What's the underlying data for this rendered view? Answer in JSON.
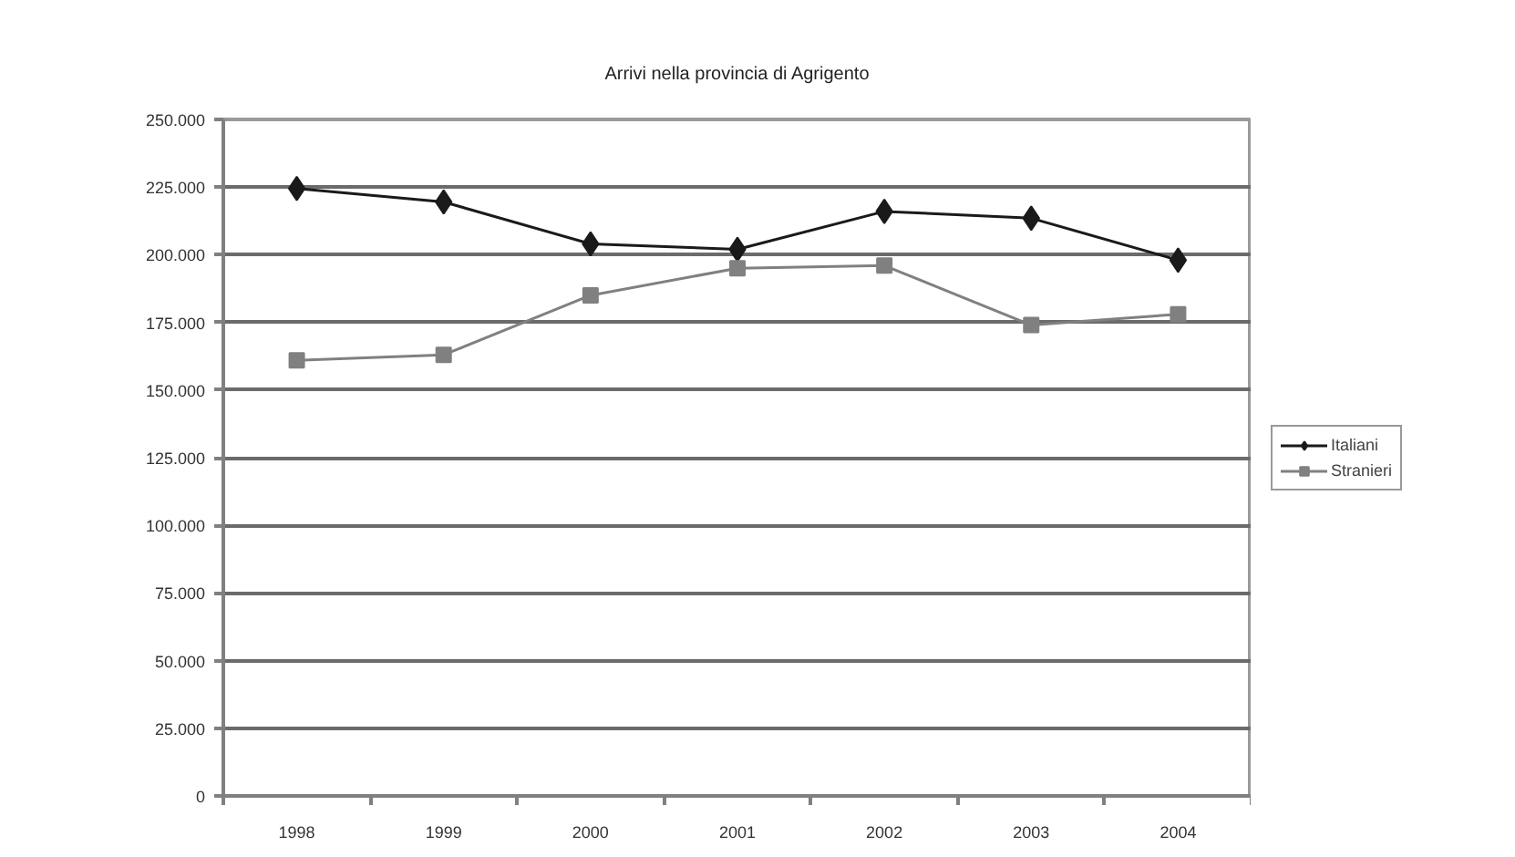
{
  "chart_data": {
    "type": "line",
    "title": "Arrivi nella provincia di Agrigento",
    "categories": [
      "1998",
      "1999",
      "2000",
      "2001",
      "2002",
      "2003",
      "2004"
    ],
    "series": [
      {
        "name": "Italiani",
        "color": "#1a1a1a",
        "marker": "diamond",
        "values": [
          224500,
          219500,
          204000,
          202000,
          216000,
          213500,
          198000
        ]
      },
      {
        "name": "Stranieri",
        "color": "#808080",
        "marker": "square",
        "values": [
          161000,
          163000,
          185000,
          195000,
          196000,
          174000,
          178000
        ]
      }
    ],
    "ylim": [
      0,
      250000
    ],
    "yticks": [
      0,
      {
        "value": 25000,
        "label": "25.000"
      },
      {
        "value": 50000,
        "label": "50.000"
      },
      {
        "value": 75000,
        "label": "75.000"
      },
      {
        "value": 100000,
        "label": "100.000"
      },
      {
        "value": 125000,
        "label": "125.000"
      },
      {
        "value": 150000,
        "label": "150.000"
      },
      {
        "value": 175000,
        "label": "175.000"
      },
      {
        "value": 200000,
        "label": "200.000"
      },
      {
        "value": 225000,
        "label": "225.000"
      },
      {
        "value": 250000,
        "label": "250.000"
      }
    ],
    "grid": "y",
    "legend": "right",
    "line_style": "solid"
  }
}
